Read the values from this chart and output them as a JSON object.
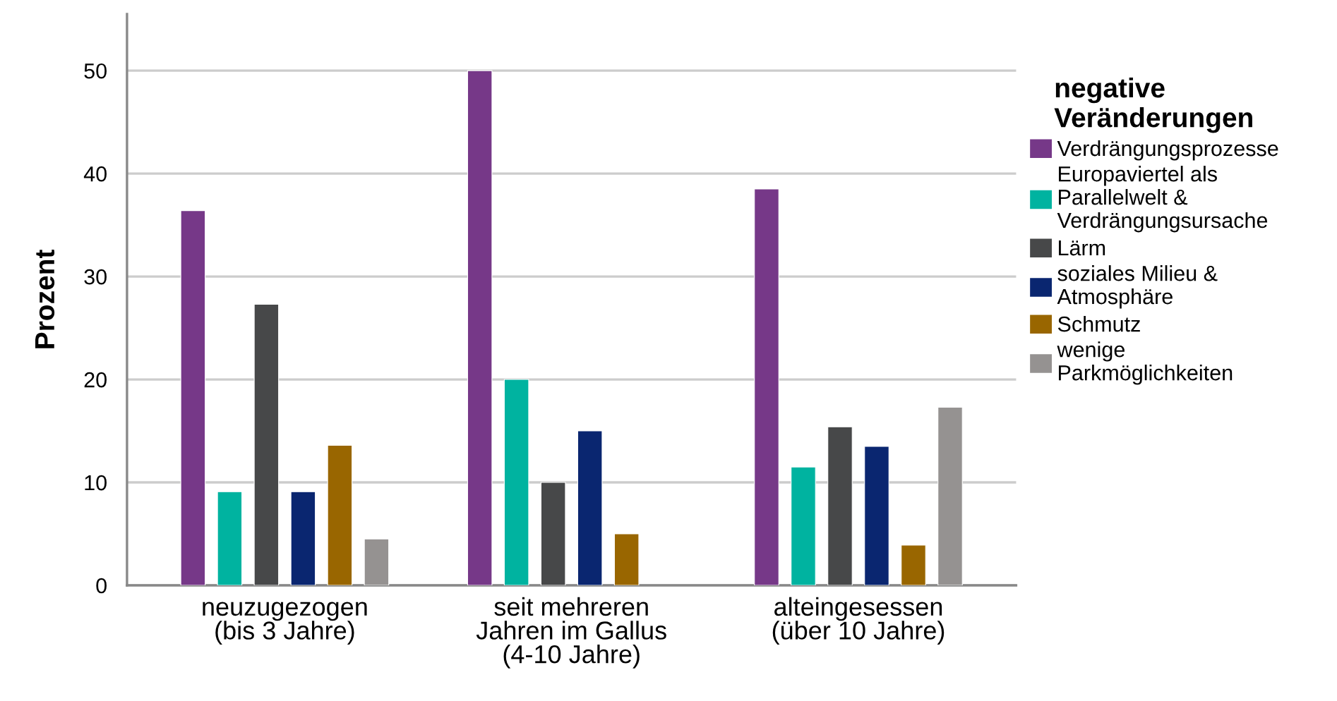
{
  "chart_data": {
    "type": "bar",
    "ylabel": "Prozent",
    "legend_title": "negative\nVeränderungen",
    "legend": "right",
    "grid": "y",
    "categories": [
      "neuzugezogen\n(bis 3 Jahre)",
      "seit mehreren\nJahren im Gallus\n(4-10 Jahre)",
      "alteingesessen\n(über 10 Jahre)"
    ],
    "ylim": [
      0,
      55.5
    ],
    "yticks": [
      0,
      10,
      20,
      30,
      40,
      50
    ],
    "series": [
      {
        "name": "Verdrängungsprozesse",
        "color": "#763888",
        "values": [
          36.4,
          50,
          38.5
        ]
      },
      {
        "name": "Europaviertel als\nParallelwelt &\nVerdrängungsursache",
        "color": "#00b3a0",
        "values": [
          9.1,
          20,
          11.5
        ]
      },
      {
        "name": "Lärm",
        "color": "#474849",
        "values": [
          27.3,
          10,
          15.4
        ]
      },
      {
        "name": "soziales Milieu &\nAtmosphäre",
        "color": "#0a2670",
        "values": [
          9.1,
          15.0,
          13.5
        ]
      },
      {
        "name": "Schmutz",
        "color": "#996600",
        "values": [
          13.6,
          5.0,
          3.9
        ]
      },
      {
        "name": "wenige\nParkmöglichkeiten",
        "color": "#959291",
        "values": [
          4.5,
          null,
          17.3
        ]
      }
    ]
  }
}
